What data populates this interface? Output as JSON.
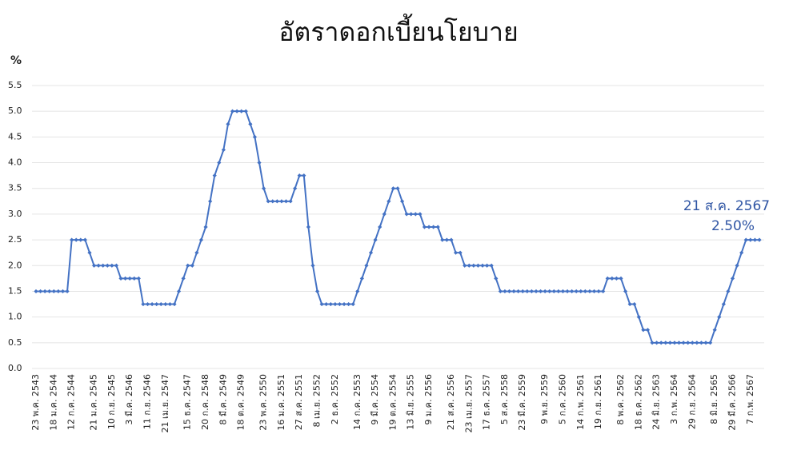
{
  "chart_data": {
    "type": "line",
    "title": "อัตราดอกเบี้ยนโยบาย",
    "y_label": "%",
    "annotation": [
      "21 ส.ค. 2567",
      "2.50%"
    ],
    "categories": [
      "23 พ.ค. 2543",
      null,
      null,
      null,
      "18 ม.ค. 2544",
      null,
      null,
      null,
      "12 ก.ค. 2544",
      null,
      null,
      null,
      null,
      "21 ม.ค. 2545",
      null,
      null,
      null,
      "10 ก.ย. 2545",
      null,
      null,
      null,
      "3 มี.ค. 2546",
      null,
      null,
      null,
      "11 ก.ย. 2546",
      null,
      null,
      null,
      "21 เม.ย. 2547",
      null,
      null,
      null,
      null,
      "15 ธ.ค. 2547",
      null,
      null,
      null,
      "20 ก.ค. 2548",
      null,
      null,
      null,
      "8 มี.ค. 2549",
      null,
      null,
      null,
      "18 ต.ค. 2549",
      null,
      null,
      null,
      null,
      "23 พ.ค. 2550",
      null,
      null,
      null,
      "16 ม.ค. 2551",
      null,
      null,
      null,
      "27 ส.ค. 2551",
      null,
      null,
      null,
      "8 เม.ย. 2552",
      null,
      null,
      null,
      "2 ธ.ค. 2552",
      null,
      null,
      null,
      null,
      "14 ก.ค. 2553",
      null,
      null,
      null,
      "9 มี.ค. 2554",
      null,
      null,
      null,
      "19 ต.ค. 2554",
      null,
      null,
      null,
      "13 มิ.ย. 2555",
      null,
      null,
      null,
      "9 ม.ค. 2556",
      null,
      null,
      null,
      null,
      "21 ส.ค. 2556",
      null,
      null,
      null,
      "23 เม.ย. 2557",
      null,
      null,
      null,
      "17 ธ.ค. 2557",
      null,
      null,
      null,
      "5 ส.ค. 2558",
      null,
      null,
      null,
      "23 มี.ค. 2559",
      null,
      null,
      null,
      null,
      "9 พ.ย. 2559",
      null,
      null,
      null,
      "5 ก.ค. 2560",
      null,
      null,
      null,
      "14 ก.พ. 2561",
      null,
      null,
      null,
      "19 ก.ย. 2561",
      null,
      null,
      null,
      null,
      "8 พ.ค. 2562",
      null,
      null,
      null,
      "18 ธ.ค. 2562",
      null,
      null,
      null,
      "24 มิ.ย. 2563",
      null,
      null,
      null,
      "3 ก.พ. 2564",
      null,
      null,
      null,
      "29 ก.ย. 2564",
      null,
      null,
      null,
      null,
      "8 มิ.ย. 2565",
      null,
      null,
      null,
      "29 มี.ค. 2566",
      null,
      null,
      null,
      "7 ก.พ. 2567",
      null,
      null
    ],
    "series": [
      {
        "color": "#4472c4",
        "values": [
          1.5,
          1.5,
          1.5,
          1.5,
          1.5,
          1.5,
          1.5,
          1.5,
          2.5,
          2.5,
          2.5,
          2.5,
          2.25,
          2.0,
          2.0,
          2.0,
          2.0,
          2.0,
          2.0,
          1.75,
          1.75,
          1.75,
          1.75,
          1.75,
          1.25,
          1.25,
          1.25,
          1.25,
          1.25,
          1.25,
          1.25,
          1.25,
          1.5,
          1.75,
          2.0,
          2.0,
          2.25,
          2.5,
          2.75,
          3.25,
          3.75,
          4.0,
          4.25,
          4.75,
          5.0,
          5.0,
          5.0,
          5.0,
          4.75,
          4.5,
          4.0,
          3.5,
          3.25,
          3.25,
          3.25,
          3.25,
          3.25,
          3.25,
          3.5,
          3.75,
          3.75,
          2.75,
          2.0,
          1.5,
          1.25,
          1.25,
          1.25,
          1.25,
          1.25,
          1.25,
          1.25,
          1.25,
          1.5,
          1.75,
          2.0,
          2.25,
          2.5,
          2.75,
          3.0,
          3.25,
          3.5,
          3.5,
          3.25,
          3.0,
          3.0,
          3.0,
          3.0,
          2.75,
          2.75,
          2.75,
          2.75,
          2.5,
          2.5,
          2.5,
          2.25,
          2.25,
          2.0,
          2.0,
          2.0,
          2.0,
          2.0,
          2.0,
          2.0,
          1.75,
          1.5,
          1.5,
          1.5,
          1.5,
          1.5,
          1.5,
          1.5,
          1.5,
          1.5,
          1.5,
          1.5,
          1.5,
          1.5,
          1.5,
          1.5,
          1.5,
          1.5,
          1.5,
          1.5,
          1.5,
          1.5,
          1.5,
          1.5,
          1.5,
          1.75,
          1.75,
          1.75,
          1.75,
          1.5,
          1.25,
          1.25,
          1.0,
          0.75,
          0.75,
          0.5,
          0.5,
          0.5,
          0.5,
          0.5,
          0.5,
          0.5,
          0.5,
          0.5,
          0.5,
          0.5,
          0.5,
          0.5,
          0.5,
          0.75,
          1.0,
          1.25,
          1.5,
          1.75,
          2.0,
          2.25,
          2.5,
          2.5,
          2.5,
          2.5
        ]
      }
    ],
    "ylim": [
      0,
      5.5
    ],
    "yticks": [
      {
        "value": 0,
        "label": "0.0"
      },
      0.5,
      {
        "value": 1,
        "label": "1.0"
      },
      1.5,
      {
        "value": 2,
        "label": "2.0"
      },
      2.5,
      {
        "value": 3,
        "label": "3.0"
      },
      3.5,
      {
        "value": 4,
        "label": "4.0"
      },
      4.5,
      {
        "value": 5,
        "label": "5.0"
      },
      5.5
    ],
    "grid": true
  }
}
